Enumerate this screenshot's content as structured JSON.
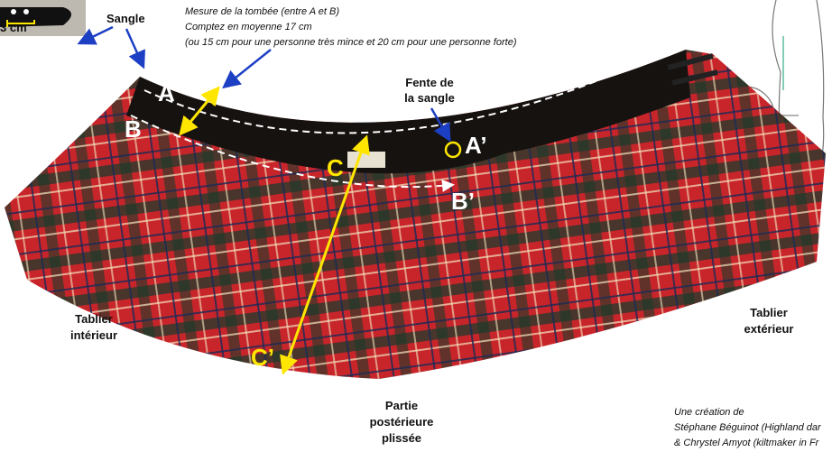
{
  "inset": {
    "width_label": "3 cm"
  },
  "labels": {
    "strap": "Sangle",
    "measure": [
      "Mesure de la tombée (entre A et B)",
      "Comptez en moyenne 17 cm",
      "(ou 15 cm pour une personne très mince et 20 cm pour une personne forte)"
    ],
    "slot": [
      "Fente de",
      "la sangle"
    ],
    "points": {
      "a": "A",
      "b": "B",
      "a2": "A’",
      "b2": "B’",
      "c": "C",
      "c2": "C’"
    },
    "inner_apron": [
      "Tablier",
      "intérieur"
    ],
    "outer_apron": [
      "Tablier",
      "extérieur"
    ],
    "back": [
      "Partie",
      "postérieure",
      "plissée"
    ]
  },
  "credits": [
    "Une création de",
    "Stéphane Béguinot (Highland dar",
    "& Chrystel Amyot (kiltmaker in Fr"
  ]
}
